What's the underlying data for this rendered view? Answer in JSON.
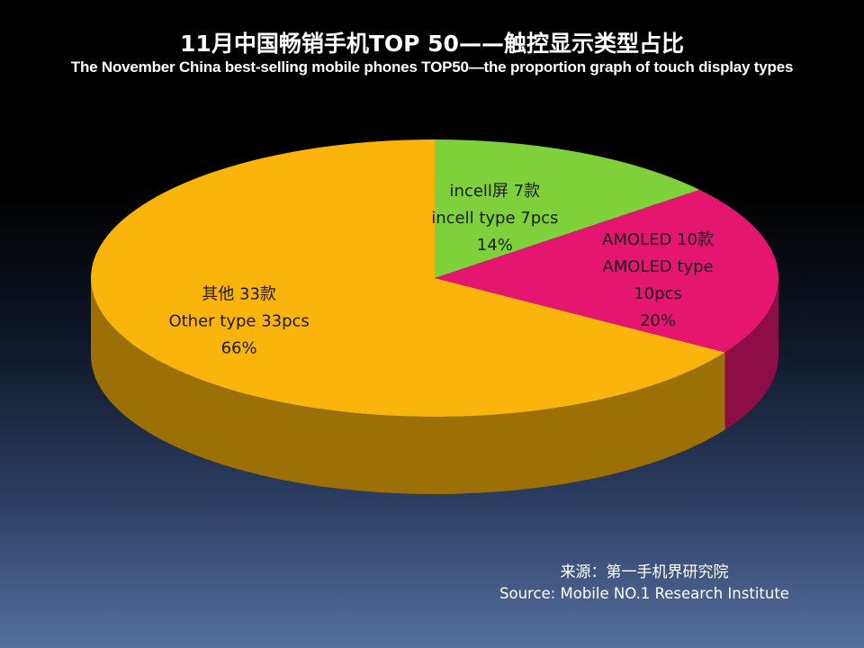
{
  "title": {
    "zh": "11月中国畅销手机TOP 50——触控显示类型占比",
    "en": "The November China best-selling mobile phones TOP50—the proportion graph of touch display types"
  },
  "source": {
    "zh": "来源：第一手机界研究院",
    "en": "Source: Mobile NO.1 Research Institute"
  },
  "chart_data": {
    "type": "pie",
    "style": "3d",
    "slices": [
      {
        "label_lines": [
          "incell屏 7款",
          "incell type  7pcs",
          "14%"
        ],
        "value": 7,
        "percent": 14,
        "color": "#7ed13a"
      },
      {
        "label_lines": [
          "AMOLED 10款",
          "AMOLED type",
          "10pcs",
          "20%"
        ],
        "value": 10,
        "percent": 20,
        "color": "#e4166f"
      },
      {
        "label_lines": [
          "其他 33款",
          "Other type  33pcs",
          "66%"
        ],
        "value": 33,
        "percent": 66,
        "color": "#fbb40c"
      }
    ]
  }
}
